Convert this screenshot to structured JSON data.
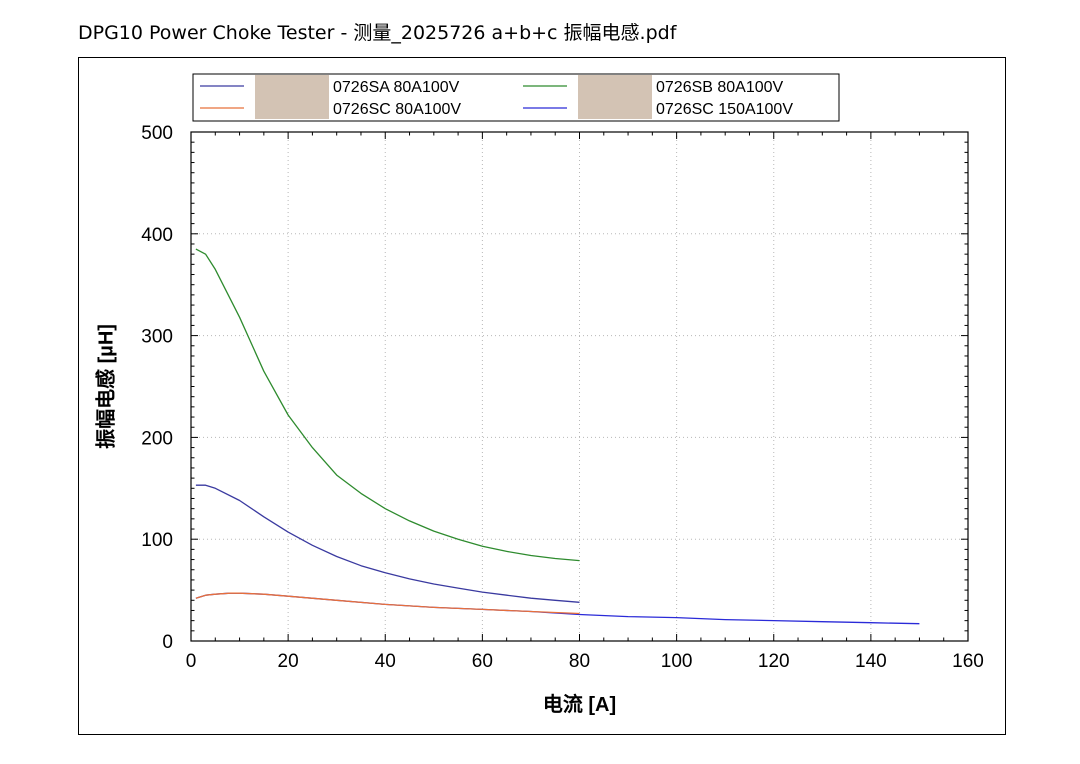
{
  "page": {
    "title": "DPG10 Power Choke Tester - 测量_2025726  a+b+c  振幅电感.pdf"
  },
  "chart_data": {
    "type": "line",
    "xlabel": "电流 [A]",
    "ylabel": "振幅电感 [µH]",
    "xlim": [
      0,
      160
    ],
    "ylim": [
      0,
      500
    ],
    "xticks": [
      0,
      20,
      40,
      60,
      80,
      100,
      120,
      140,
      160
    ],
    "yticks": [
      0,
      100,
      200,
      300,
      400,
      500
    ],
    "grid": true,
    "legend_placement": "top",
    "series": [
      {
        "name": "0726SA 80A100V",
        "color": "#3a3aa0",
        "x": [
          1,
          3,
          5,
          10,
          15,
          20,
          25,
          30,
          35,
          40,
          45,
          50,
          55,
          60,
          65,
          70,
          75,
          80
        ],
        "y": [
          153,
          153,
          150,
          138,
          122,
          107,
          94,
          83,
          74,
          67,
          61,
          56,
          52,
          48,
          45,
          42,
          40,
          38
        ]
      },
      {
        "name": "0726SB 80A100V",
        "color": "#2e8b2e",
        "x": [
          1,
          3,
          5,
          10,
          15,
          20,
          25,
          30,
          35,
          40,
          45,
          50,
          55,
          60,
          65,
          70,
          75,
          80
        ],
        "y": [
          385,
          380,
          365,
          318,
          265,
          222,
          190,
          163,
          145,
          130,
          118,
          108,
          100,
          93,
          88,
          84,
          81,
          79
        ]
      },
      {
        "name": "0726SC 80A100V",
        "color": "#e8703a",
        "x": [
          1,
          3,
          5,
          8,
          10,
          15,
          20,
          30,
          40,
          50,
          60,
          70,
          80
        ],
        "y": [
          42,
          45,
          46,
          47,
          47,
          46,
          44,
          40,
          36,
          33,
          31,
          29,
          27
        ]
      },
      {
        "name": "0726SC 150A100V",
        "color": "#2a2ad8",
        "x": [
          1,
          3,
          5,
          8,
          10,
          15,
          20,
          30,
          40,
          50,
          60,
          70,
          80,
          90,
          100,
          110,
          120,
          130,
          140,
          150
        ],
        "y": [
          42,
          45,
          46,
          47,
          47,
          46,
          44,
          40,
          36,
          33,
          31,
          29,
          26,
          24,
          23,
          21,
          20,
          19,
          18,
          17
        ]
      }
    ]
  }
}
